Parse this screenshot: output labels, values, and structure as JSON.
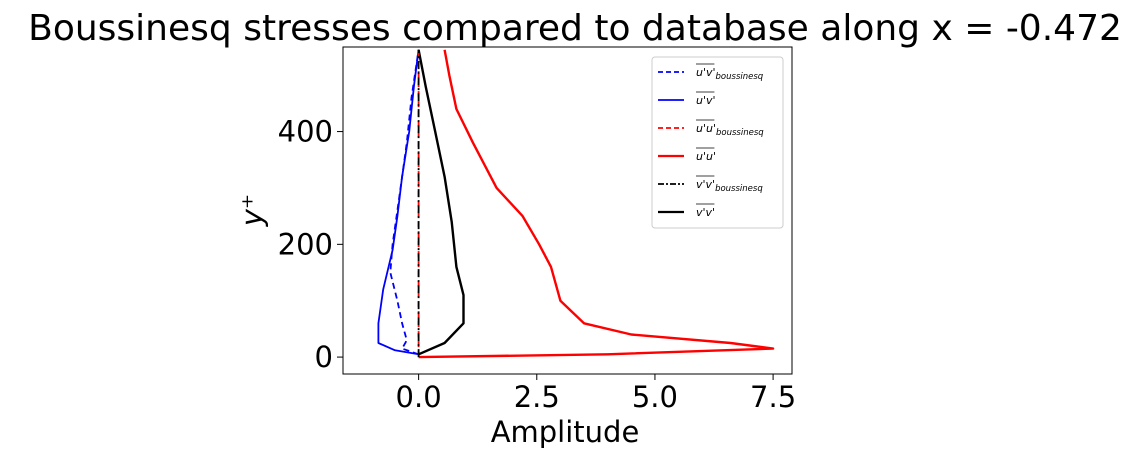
{
  "chart_data": {
    "type": "line",
    "title": "Boussinesq stresses compared to database along x = -0.472",
    "xlabel": "Amplitude",
    "ylabel": "y⁺",
    "xlim": [
      -1.6,
      7.9
    ],
    "ylim": [
      -30,
      550
    ],
    "xticks": [
      0.0,
      2.5,
      5.0,
      7.5
    ],
    "xtick_labels": [
      "0.0",
      "2.5",
      "5.0",
      "7.5"
    ],
    "yticks": [
      0,
      200,
      400
    ],
    "ytick_labels": [
      "0",
      "200",
      "400"
    ],
    "grid": false,
    "legend_position": "top-right",
    "series": [
      {
        "name": "u'v'_boussinesq",
        "label_main": "u'v'",
        "label_sub": "boussinesq",
        "color": "#0000ff",
        "dash": "dashed",
        "x": [
          0.0,
          -0.35,
          -0.25,
          -0.35,
          -0.45,
          -0.6,
          -0.55,
          -0.45,
          -0.35,
          -0.25,
          -0.15,
          0.0
        ],
        "y": [
          5,
          15,
          30,
          60,
          100,
          150,
          200,
          260,
          320,
          380,
          460,
          545
        ]
      },
      {
        "name": "u'v'",
        "label_main": "u'v'",
        "label_sub": "",
        "color": "#0000ff",
        "dash": "solid",
        "x": [
          0.0,
          -0.5,
          -0.85,
          -0.85,
          -0.75,
          -0.55,
          -0.45,
          -0.35,
          -0.2,
          -0.1,
          0.0
        ],
        "y": [
          5,
          12,
          25,
          60,
          120,
          190,
          250,
          320,
          400,
          480,
          545
        ]
      },
      {
        "name": "u'u'_boussinesq",
        "label_main": "u'u'",
        "label_sub": "boussinesq",
        "color": "#ff0000",
        "dash": "dashed",
        "x": [
          0.0,
          0.0,
          0.0,
          0.0,
          0.0
        ],
        "y": [
          0,
          100,
          300,
          450,
          545
        ]
      },
      {
        "name": "u'u'",
        "label_main": "u'u'",
        "label_sub": "",
        "color": "#ff0000",
        "dash": "solid",
        "x": [
          0.0,
          4.0,
          7.5,
          6.6,
          4.5,
          3.5,
          3.0,
          2.8,
          2.55,
          2.2,
          1.65,
          1.15,
          0.8,
          0.65,
          0.55
        ],
        "y": [
          0,
          5,
          15,
          25,
          40,
          60,
          100,
          160,
          200,
          250,
          300,
          380,
          440,
          500,
          545
        ]
      },
      {
        "name": "v'v'_boussinesq",
        "label_main": "v'v'",
        "label_sub": "boussinesq",
        "color": "#000000",
        "dash": "dashdot",
        "x": [
          0.0,
          0.0,
          0.0,
          0.0,
          0.0
        ],
        "y": [
          0,
          100,
          300,
          450,
          545
        ]
      },
      {
        "name": "v'v'",
        "label_main": "v'v'",
        "label_sub": "",
        "color": "#000000",
        "dash": "solid",
        "x": [
          0.0,
          0.55,
          0.95,
          0.95,
          0.8,
          0.7,
          0.55,
          0.35,
          0.15,
          0.0
        ],
        "y": [
          5,
          25,
          60,
          110,
          160,
          240,
          320,
          400,
          480,
          545
        ]
      }
    ]
  }
}
